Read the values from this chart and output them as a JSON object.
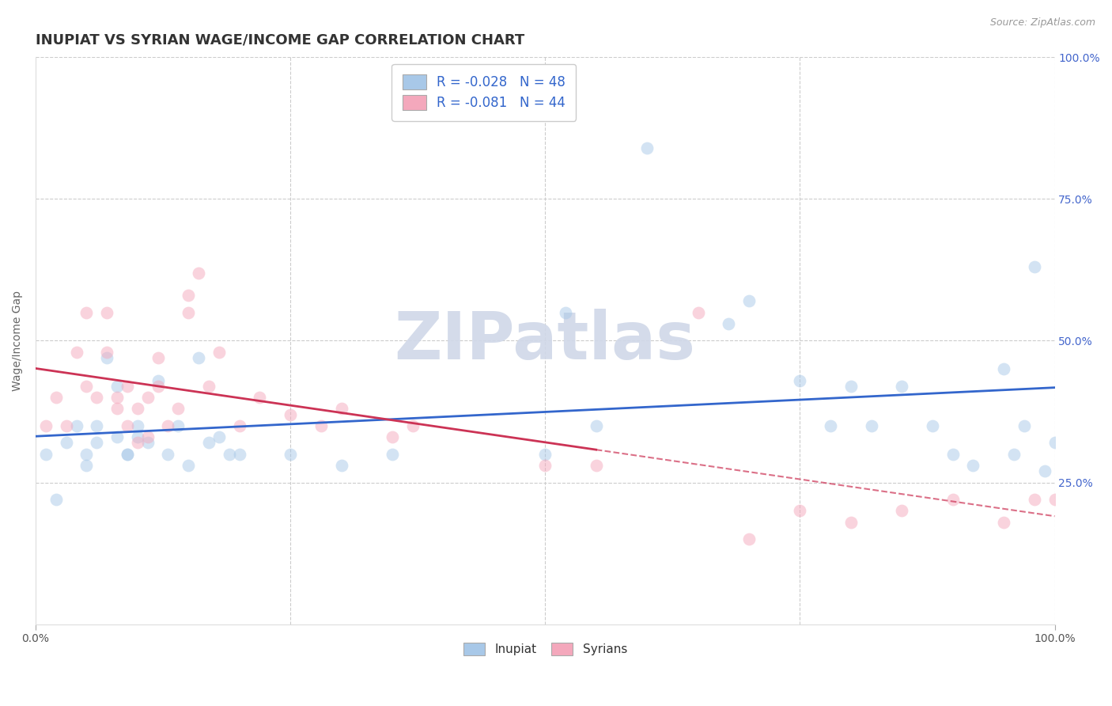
{
  "title": "INUPIAT VS SYRIAN WAGE/INCOME GAP CORRELATION CHART",
  "source": "Source: ZipAtlas.com",
  "ylabel": "Wage/Income Gap",
  "legend_r_inupiat": "R = -0.028",
  "legend_n_inupiat": "N = 48",
  "legend_r_syrians": "R = -0.081",
  "legend_n_syrians": "N = 44",
  "inupiat_color": "#a8c8e8",
  "syrians_color": "#f4a8bc",
  "inupiat_line_color": "#3366cc",
  "syrians_line_color": "#cc3355",
  "background_color": "#ffffff",
  "grid_color": "#cccccc",
  "watermark_color": "#d0d8e8",
  "xlim": [
    0,
    100
  ],
  "ylim": [
    0,
    100
  ],
  "inupiat_x": [
    1,
    2,
    3,
    4,
    5,
    5,
    6,
    6,
    7,
    8,
    8,
    9,
    9,
    10,
    10,
    11,
    12,
    13,
    14,
    15,
    16,
    17,
    18,
    19,
    20,
    25,
    30,
    35,
    50,
    52,
    55,
    60,
    68,
    70,
    75,
    78,
    80,
    82,
    85,
    88,
    90,
    92,
    95,
    96,
    97,
    98,
    99,
    100
  ],
  "inupiat_y": [
    30,
    22,
    32,
    35,
    30,
    28,
    32,
    35,
    47,
    33,
    42,
    30,
    30,
    33,
    35,
    32,
    43,
    30,
    35,
    28,
    47,
    32,
    33,
    30,
    30,
    30,
    28,
    30,
    30,
    55,
    35,
    84,
    53,
    57,
    43,
    35,
    42,
    35,
    42,
    35,
    30,
    28,
    45,
    30,
    35,
    63,
    27,
    32
  ],
  "syrians_x": [
    1,
    2,
    3,
    4,
    5,
    5,
    6,
    7,
    7,
    8,
    8,
    9,
    9,
    10,
    10,
    11,
    11,
    12,
    12,
    13,
    14,
    15,
    15,
    16,
    17,
    18,
    20,
    22,
    25,
    28,
    30,
    35,
    37,
    50,
    55,
    65,
    70,
    75,
    80,
    85,
    90,
    95,
    98,
    100
  ],
  "syrians_y": [
    35,
    40,
    35,
    48,
    55,
    42,
    40,
    55,
    48,
    38,
    40,
    35,
    42,
    32,
    38,
    33,
    40,
    42,
    47,
    35,
    38,
    58,
    55,
    62,
    42,
    48,
    35,
    40,
    37,
    35,
    38,
    33,
    35,
    28,
    28,
    55,
    15,
    20,
    18,
    20,
    22,
    18,
    22,
    22
  ],
  "title_fontsize": 13,
  "axis_label_fontsize": 10,
  "tick_fontsize": 10,
  "marker_size": 130,
  "marker_alpha": 0.5
}
